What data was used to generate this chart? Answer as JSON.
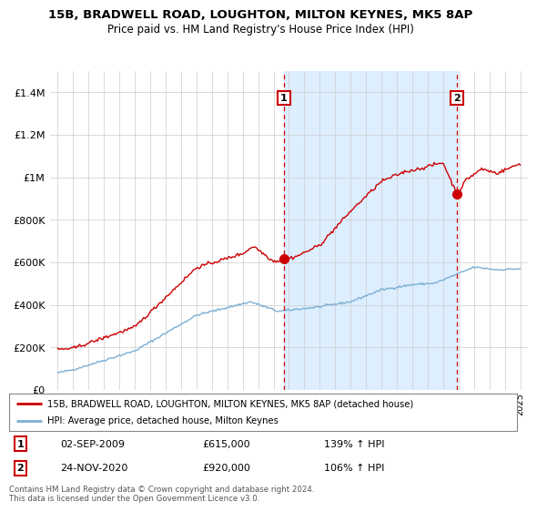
{
  "title": "15B, BRADWELL ROAD, LOUGHTON, MILTON KEYNES, MK5 8AP",
  "subtitle": "Price paid vs. HM Land Registry's House Price Index (HPI)",
  "legend_line1": "15B, BRADWELL ROAD, LOUGHTON, MILTON KEYNES, MK5 8AP (detached house)",
  "legend_line2": "HPI: Average price, detached house, Milton Keynes",
  "annotation1": {
    "num": "1",
    "date": "02-SEP-2009",
    "price": "£615,000",
    "hpi": "139% ↑ HPI",
    "x_year": 2009.67,
    "y_val": 615000
  },
  "annotation2": {
    "num": "2",
    "date": "24-NOV-2020",
    "price": "£920,000",
    "hpi": "106% ↑ HPI",
    "x_year": 2020.9,
    "y_val": 920000
  },
  "footer": "Contains HM Land Registry data © Crown copyright and database right 2024.\nThis data is licensed under the Open Government Licence v3.0.",
  "hpi_color": "#7bafd4",
  "price_color": "#cc0000",
  "shade_color": "#ddeeff",
  "ytick_labels": [
    "£0",
    "£200K",
    "£400K",
    "£600K",
    "£800K",
    "£1M",
    "£1.2M",
    "£1.4M"
  ],
  "ytick_values": [
    0,
    200000,
    400000,
    600000,
    800000,
    1000000,
    1200000,
    1400000
  ],
  "ylim": [
    0,
    1500000
  ],
  "xlim_start": 1994.5,
  "xlim_end": 2025.5,
  "vline1_x": 2009.67,
  "vline2_x": 2020.9,
  "background_color": "#ffffff"
}
